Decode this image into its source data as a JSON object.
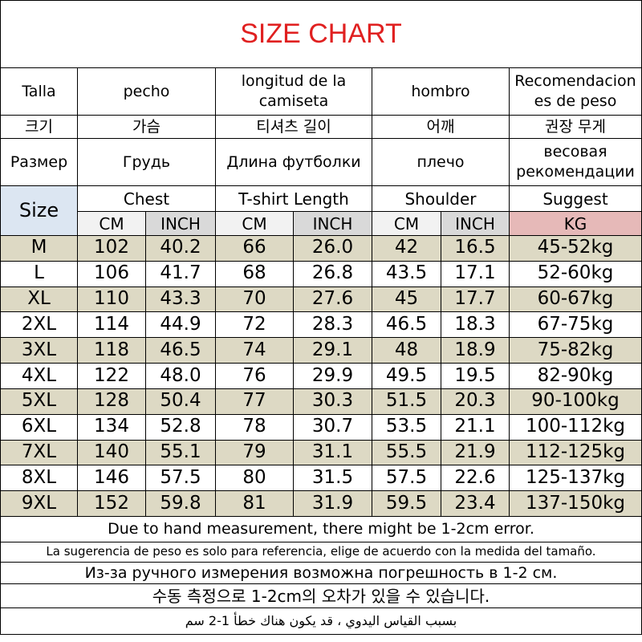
{
  "title": "SIZE CHART",
  "header_rows": [
    [
      "Talla",
      "pecho",
      "longitud de la camiseta",
      "hombro",
      "Recomendaciones de peso"
    ],
    [
      "크기",
      "가슴",
      "티셔츠 길이",
      "어깨",
      "권장 무게"
    ],
    [
      "Размер",
      "Грудь",
      "Длина футболки",
      "плечо",
      "весовая рекомендации"
    ]
  ],
  "size_label": "Size",
  "groups": [
    "Chest",
    "T-shirt Length",
    "Shoulder",
    "Suggest"
  ],
  "units": [
    "CM",
    "INCH",
    "CM",
    "INCH",
    "CM",
    "INCH",
    "KG"
  ],
  "rows": [
    [
      "M",
      "102",
      "40.2",
      "66",
      "26.0",
      "42",
      "16.5",
      "45-52kg"
    ],
    [
      "L",
      "106",
      "41.7",
      "68",
      "26.8",
      "43.5",
      "17.1",
      "52-60kg"
    ],
    [
      "XL",
      "110",
      "43.3",
      "70",
      "27.6",
      "45",
      "17.7",
      "60-67kg"
    ],
    [
      "2XL",
      "114",
      "44.9",
      "72",
      "28.3",
      "46.5",
      "18.3",
      "67-75kg"
    ],
    [
      "3XL",
      "118",
      "46.5",
      "74",
      "29.1",
      "48",
      "18.9",
      "75-82kg"
    ],
    [
      "4XL",
      "122",
      "48.0",
      "76",
      "29.9",
      "49.5",
      "19.5",
      "82-90kg"
    ],
    [
      "5XL",
      "128",
      "50.4",
      "77",
      "30.3",
      "51.5",
      "20.3",
      "90-100kg"
    ],
    [
      "6XL",
      "134",
      "52.8",
      "78",
      "30.7",
      "53.5",
      "21.1",
      "100-112kg"
    ],
    [
      "7XL",
      "140",
      "55.1",
      "79",
      "31.1",
      "55.5",
      "21.9",
      "112-125kg"
    ],
    [
      "8XL",
      "146",
      "57.5",
      "80",
      "31.5",
      "57.5",
      "22.6",
      "125-137kg"
    ],
    [
      "9XL",
      "152",
      "59.8",
      "81",
      "31.9",
      "59.5",
      "23.4",
      "137-150kg"
    ]
  ],
  "notes": [
    "Due to hand measurement, there might be 1-2cm error.",
    "La sugerencia de peso es solo para referencia, elige de acuerdo con la medida del tamaño.",
    "Из-за ручного измерения возможна погрешность в 1-2 см.",
    "수동 측정으로 1-2cm의 오차가 있을 수 있습니다.",
    "بسبب القياس اليدوي ، قد يكون هناك خطأ 1-2 سم"
  ]
}
